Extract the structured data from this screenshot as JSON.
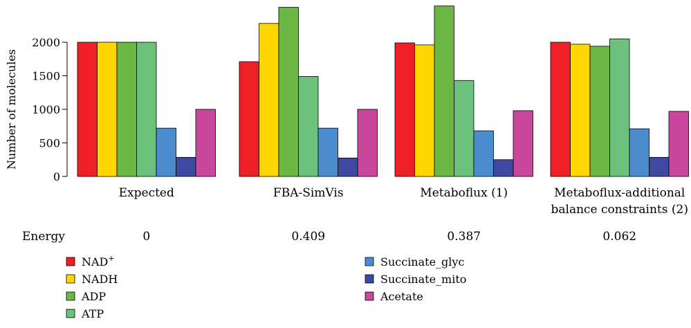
{
  "chart_data": {
    "type": "bar",
    "ylabel": "Number of molecules",
    "yticks": [
      0,
      500,
      1000,
      1500,
      2000
    ],
    "ylim": [
      0,
      2600
    ],
    "groups": [
      {
        "label_lines": [
          "Expected"
        ],
        "energy": "0",
        "values": [
          2000,
          2000,
          2000,
          2000,
          720,
          285,
          1000
        ]
      },
      {
        "label_lines": [
          "FBA-SimVis"
        ],
        "energy": "0.409",
        "values": [
          1710,
          2280,
          2520,
          1490,
          720,
          275,
          1000
        ]
      },
      {
        "label_lines": [
          "Metaboflux (1)"
        ],
        "energy": "0.387",
        "values": [
          1990,
          1960,
          2540,
          1430,
          680,
          250,
          980
        ]
      },
      {
        "label_lines": [
          "Metaboflux-additional",
          "balance constraints (2)"
        ],
        "energy": "0.062",
        "values": [
          2000,
          1970,
          1940,
          2050,
          710,
          285,
          970
        ]
      }
    ],
    "energy_label": "Energy",
    "series": [
      {
        "name": "NAD",
        "sup": "+",
        "color": "#ee2026"
      },
      {
        "name": "NADH",
        "sup": "",
        "color": "#ffd600"
      },
      {
        "name": "ADP",
        "sup": "",
        "color": "#6ab743"
      },
      {
        "name": "ATP",
        "sup": "",
        "color": "#6cc27c"
      },
      {
        "name": "Succinate_glyc",
        "sup": "",
        "color": "#4a8cce"
      },
      {
        "name": "Succinate_mito",
        "sup": "",
        "color": "#4049a0"
      },
      {
        "name": "Acetate",
        "sup": "",
        "color": "#c9479c"
      }
    ]
  }
}
